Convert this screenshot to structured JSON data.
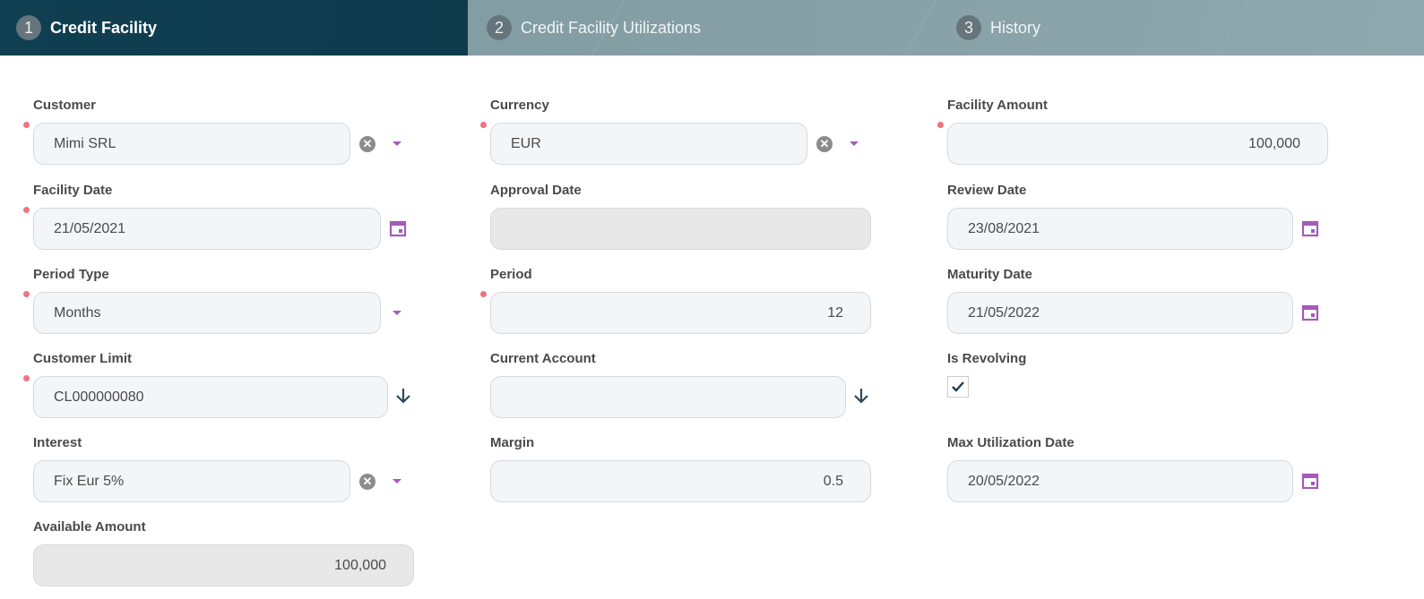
{
  "tabs": [
    {
      "num": "1",
      "label": "Credit Facility",
      "active": true
    },
    {
      "num": "2",
      "label": "Credit Facility Utilizations"
    },
    {
      "num": "3",
      "label": "History"
    }
  ],
  "fields": [
    {
      "id": "customer",
      "label": "Customer",
      "value": "Mimi SRL",
      "required": true,
      "icons": [
        "clear",
        "caret"
      ]
    },
    {
      "id": "currency",
      "label": "Currency",
      "value": "EUR",
      "required": true,
      "icons": [
        "clear",
        "caret"
      ]
    },
    {
      "id": "facility_amount",
      "label": "Facility Amount",
      "value": "100,000",
      "required": true,
      "align": "right"
    },
    {
      "id": "facility_date",
      "label": "Facility Date",
      "value": "21/05/2021",
      "required": true,
      "icons": [
        "calendar"
      ]
    },
    {
      "id": "approval_date",
      "label": "Approval Date",
      "value": "",
      "disabled": true
    },
    {
      "id": "review_date",
      "label": "Review Date",
      "value": "23/08/2021",
      "icons": [
        "calendar"
      ]
    },
    {
      "id": "period_type",
      "label": "Period Type",
      "value": "Months",
      "required": true,
      "icons": [
        "caret"
      ]
    },
    {
      "id": "period",
      "label": "Period",
      "value": "12",
      "required": true,
      "align": "right"
    },
    {
      "id": "maturity_date",
      "label": "Maturity Date",
      "value": "21/05/2022",
      "icons": [
        "calendar"
      ]
    },
    {
      "id": "customer_limit",
      "label": "Customer Limit",
      "value": "CL000000080",
      "required": true,
      "icons": [
        "arrow-down"
      ]
    },
    {
      "id": "current_account",
      "label": "Current Account",
      "value": "",
      "icons": [
        "arrow-down"
      ]
    },
    {
      "id": "is_revolving",
      "label": "Is Revolving",
      "checkbox": true,
      "checked": true
    },
    {
      "id": "interest",
      "label": "Interest",
      "value": "Fix Eur 5%",
      "icons": [
        "clear",
        "caret"
      ]
    },
    {
      "id": "margin",
      "label": "Margin",
      "value": "0.5",
      "align": "right"
    },
    {
      "id": "max_utilization_date",
      "label": "Max Utilization Date",
      "value": "20/05/2022",
      "icons": [
        "calendar"
      ]
    },
    {
      "id": "available_amount",
      "label": "Available Amount",
      "value": "100,000",
      "disabled": true,
      "align": "right"
    }
  ],
  "colors": {
    "header_active": "#0f3d50",
    "header": "#7b979e",
    "required": "#f0737f",
    "accent": "#a35bb8",
    "icon_dark": "#2f4a57"
  }
}
